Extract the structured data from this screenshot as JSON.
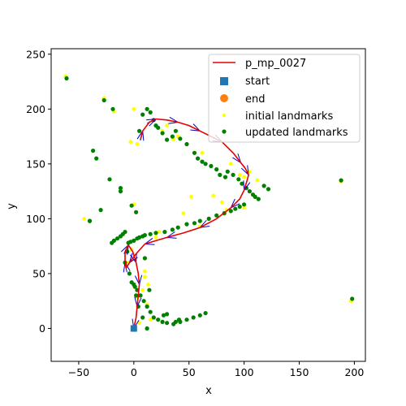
{
  "chart_data": {
    "type": "scatter",
    "title": "",
    "xlabel": "x",
    "ylabel": "y",
    "xlim": [
      -75,
      210
    ],
    "ylim": [
      -30,
      255
    ],
    "xticks": [
      -50,
      0,
      50,
      100,
      150,
      200
    ],
    "yticks": [
      0,
      50,
      100,
      150,
      200,
      250
    ],
    "xtick_labels": [
      "−50",
      "0",
      "50",
      "100",
      "150",
      "200"
    ],
    "ytick_labels": [
      "0",
      "50",
      "100",
      "150",
      "200",
      "250"
    ],
    "grid": false,
    "legend_position": "top-right",
    "colors": {
      "trajectory": "#e60000",
      "start": "#1f77b4",
      "end": "#ff7f0e",
      "initial_landmarks": "#ffff00",
      "updated_landmarks": "#008000",
      "pose_arrows": "#0000cc"
    },
    "series": [
      {
        "name": "p_mp_0027",
        "kind": "line",
        "x": [
          0,
          2,
          3,
          4,
          5,
          4,
          2,
          -1,
          -5,
          -8,
          -8,
          -7,
          -4,
          2,
          10,
          20,
          30,
          45,
          60,
          75,
          88,
          96,
          100,
          103,
          104,
          101,
          97,
          90,
          80,
          70,
          60,
          50,
          40,
          30,
          20,
          14,
          8,
          6
        ],
        "y": [
          0,
          10,
          20,
          30,
          40,
          50,
          60,
          70,
          76,
          70,
          60,
          55,
          60,
          68,
          77,
          80,
          83,
          87,
          92,
          100,
          110,
          118,
          126,
          136,
          140,
          146,
          151,
          160,
          170,
          175,
          180,
          185,
          188,
          190,
          191,
          188,
          180,
          172
        ]
      },
      {
        "name": "start",
        "kind": "marker",
        "x": [
          0
        ],
        "y": [
          0
        ]
      },
      {
        "name": "end",
        "kind": "marker",
        "x": [],
        "y": []
      },
      {
        "name": "initial landmarks",
        "kind": "scatter",
        "x": [
          -62,
          -27,
          -45,
          -18,
          0,
          3,
          10,
          13,
          23,
          36,
          52,
          60,
          72,
          84,
          100,
          105,
          112,
          118,
          188,
          197,
          -5,
          10,
          12,
          -3,
          26,
          30,
          40,
          62,
          88,
          96,
          100,
          8,
          15,
          5,
          0,
          3,
          -2,
          20,
          45,
          80
        ],
        "y": [
          230,
          210,
          100,
          198,
          113,
          168,
          52,
          40,
          88,
          172,
          120,
          93,
          121,
          108,
          110,
          143,
          135,
          130,
          134,
          25,
          60,
          47,
          22,
          170,
          180,
          185,
          175,
          160,
          150,
          140,
          138,
          35,
          8,
          5,
          200,
          28,
          72,
          83,
          105,
          115
        ]
      },
      {
        "name": "updated landmarks",
        "kind": "scatter",
        "x": [
          -61,
          -27,
          -19,
          -37,
          -34,
          -40,
          -30,
          -22,
          -12,
          -12,
          -2,
          2,
          5,
          8,
          12,
          15,
          18,
          20,
          22,
          26,
          30,
          35,
          38,
          42,
          48,
          55,
          58,
          62,
          65,
          70,
          75,
          78,
          83,
          85,
          90,
          95,
          98,
          102,
          105,
          108,
          110,
          113,
          118,
          122,
          100,
          96,
          92,
          88,
          82,
          75,
          68,
          60,
          55,
          48,
          40,
          35,
          28,
          20,
          15,
          10,
          8,
          5,
          3,
          0,
          -3,
          -5,
          -8,
          -10,
          -12,
          -15,
          -18,
          -20,
          -6,
          -8,
          -4,
          -2,
          1,
          3,
          6,
          9,
          12,
          15,
          18,
          22,
          26,
          30,
          36,
          42,
          48,
          54,
          60,
          65,
          198,
          188,
          -40,
          12,
          8,
          4,
          2,
          0,
          10,
          14,
          38,
          41,
          27,
          30
        ],
        "y": [
          228,
          208,
          200,
          162,
          155,
          98,
          108,
          136,
          128,
          125,
          112,
          106,
          180,
          195,
          200,
          197,
          190,
          185,
          183,
          178,
          172,
          175,
          180,
          173,
          168,
          160,
          155,
          152,
          150,
          148,
          145,
          140,
          138,
          143,
          140,
          136,
          132,
          128,
          125,
          122,
          120,
          118,
          130,
          127,
          113,
          111,
          109,
          107,
          105,
          103,
          100,
          98,
          96,
          95,
          92,
          90,
          88,
          87,
          86,
          85,
          84,
          83,
          82,
          80,
          79,
          78,
          88,
          86,
          84,
          82,
          80,
          78,
          70,
          60,
          50,
          42,
          38,
          35,
          30,
          25,
          20,
          15,
          10,
          8,
          6,
          5,
          4,
          6,
          8,
          10,
          12,
          14,
          27,
          135,
          98,
          0,
          10,
          20,
          30,
          40,
          64,
          35,
          6,
          8,
          12,
          13
        ]
      }
    ]
  }
}
